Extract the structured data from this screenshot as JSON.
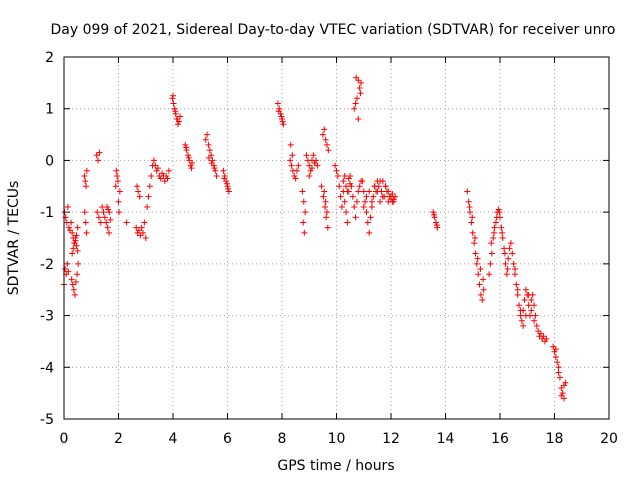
{
  "chart_data": {
    "type": "scatter",
    "title": "Day 099 of 2021, Sidereal Day-to-day VTEC variation (SDTVAR) for receiver unro",
    "xlabel": "GPS time / hours",
    "ylabel": "SDTVAR / TECUs",
    "xlim": [
      0,
      20
    ],
    "ylim": [
      -5,
      2
    ],
    "xticks": [
      "0",
      "2",
      "4",
      "6",
      "8",
      "10",
      "12",
      "14",
      "16",
      "18",
      "20"
    ],
    "yticks": [
      "2",
      "1",
      "0",
      "-1",
      "-2",
      "-3",
      "-4",
      "-5"
    ],
    "grid": true,
    "marker": "+",
    "color": "#ff0000",
    "series": [
      {
        "name": "SDTVAR",
        "x": [
          0.0,
          0.04,
          0.08,
          0.12,
          0.16,
          0.02,
          0.06,
          0.1,
          0.14,
          0.18,
          0.22,
          0.26,
          0.3,
          0.34,
          0.38,
          0.42,
          0.46,
          0.5,
          0.28,
          0.32,
          0.36,
          0.4,
          0.44,
          0.48,
          0.52,
          0.3,
          0.34,
          0.38,
          0.42,
          0.46,
          0.5,
          0.75,
          0.78,
          0.81,
          0.84,
          0.76,
          0.8,
          0.83,
          1.2,
          1.25,
          1.3,
          1.22,
          1.28,
          1.35,
          1.4,
          1.45,
          1.5,
          1.55,
          1.6,
          1.65,
          1.7,
          1.58,
          1.62,
          1.66,
          1.9,
          1.95,
          2.0,
          2.05,
          1.92,
          1.98,
          2.02,
          2.3,
          2.65,
          2.7,
          2.75,
          2.8,
          2.68,
          2.72,
          2.78,
          2.85,
          2.9,
          2.95,
          3.0,
          3.05,
          3.1,
          3.15,
          3.2,
          3.25,
          3.3,
          3.35,
          3.4,
          3.45,
          3.5,
          3.55,
          3.6,
          3.65,
          3.7,
          3.75,
          3.8,
          3.85,
          3.98,
          4.02,
          4.06,
          4.1,
          4.14,
          4.18,
          4.22,
          4.26,
          4.0,
          4.08,
          4.16,
          4.45,
          4.5,
          4.55,
          4.6,
          4.65,
          4.7,
          4.48,
          4.58,
          4.68,
          5.2,
          5.25,
          5.3,
          5.35,
          5.4,
          5.45,
          5.5,
          5.55,
          5.6,
          5.32,
          5.42,
          5.52,
          5.85,
          5.9,
          5.95,
          6.0,
          6.05,
          5.88,
          5.98,
          6.02,
          7.85,
          7.9,
          7.95,
          8.0,
          8.05,
          7.88,
          7.98,
          8.02,
          8.3,
          8.35,
          8.4,
          8.45,
          8.32,
          8.38,
          8.5,
          8.55,
          8.6,
          8.75,
          8.8,
          8.85,
          8.78,
          8.82,
          8.9,
          8.95,
          9.0,
          9.05,
          9.1,
          9.15,
          9.2,
          9.25,
          9.3,
          9.0,
          9.1,
          9.2,
          9.5,
          9.55,
          9.6,
          9.65,
          9.7,
          9.45,
          9.52,
          9.58,
          9.62,
          9.68,
          9.55,
          9.6,
          9.65,
          9.95,
          10.0,
          10.05,
          10.1,
          10.15,
          10.2,
          10.25,
          10.3,
          10.35,
          10.4,
          10.45,
          10.5,
          10.55,
          10.6,
          10.65,
          10.7,
          10.75,
          10.8,
          10.85,
          10.9,
          11.0,
          11.1,
          11.2,
          11.3,
          11.4,
          11.5,
          11.6,
          11.7,
          11.8,
          11.9,
          12.0,
          12.05,
          12.1,
          10.25,
          10.3,
          10.35,
          10.4,
          10.45,
          10.5,
          10.65,
          10.7,
          10.75,
          10.8,
          10.85,
          10.9,
          10.72,
          10.8,
          10.88,
          10.95,
          11.0,
          11.05,
          11.1,
          11.15,
          11.2,
          11.25,
          11.3,
          11.35,
          11.4,
          11.45,
          11.5,
          11.55,
          11.6,
          11.65,
          11.7,
          11.75,
          11.8,
          11.85,
          11.9,
          11.95,
          12.0,
          12.05,
          12.1,
          12.15,
          13.55,
          13.6,
          13.65,
          13.7,
          13.58,
          13.68,
          14.8,
          14.85,
          14.9,
          14.95,
          15.0,
          15.05,
          15.1,
          15.15,
          15.2,
          15.25,
          15.3,
          15.35,
          15.4,
          14.88,
          14.98,
          15.08,
          15.18,
          15.28,
          15.38,
          15.6,
          15.65,
          15.7,
          15.75,
          15.8,
          15.85,
          15.9,
          15.95,
          16.0,
          16.05,
          16.1,
          16.15,
          16.2,
          16.25,
          16.3,
          16.35,
          15.68,
          15.78,
          15.88,
          15.98,
          16.08,
          16.18,
          16.28,
          16.4,
          16.45,
          16.5,
          16.55,
          16.6,
          16.65,
          16.7,
          16.75,
          16.8,
          16.85,
          16.9,
          16.95,
          17.0,
          17.05,
          17.1,
          17.15,
          17.2,
          17.25,
          17.3,
          16.55,
          16.65,
          16.75,
          16.85,
          16.95,
          17.05,
          17.15,
          17.25,
          17.35,
          17.4,
          17.45,
          17.5,
          17.55,
          17.6,
          17.65,
          17.7,
          17.95,
          18.0,
          18.05,
          18.1,
          18.15,
          18.2,
          18.25,
          18.3,
          18.35,
          18.4,
          18.05,
          18.15,
          18.25,
          18.35
        ],
        "y": [
          -2.4,
          -2.1,
          -2.2,
          -2.0,
          -2.15,
          -1.0,
          -1.1,
          -1.2,
          -0.9,
          -1.3,
          -1.35,
          -1.2,
          -1.4,
          -1.5,
          -1.6,
          -1.55,
          -1.45,
          -1.3,
          -2.3,
          -2.4,
          -2.5,
          -2.6,
          -2.35,
          -2.2,
          -2.0,
          -1.8,
          -1.7,
          -1.6,
          -1.5,
          -1.65,
          -1.75,
          -0.3,
          -0.4,
          -0.5,
          -0.2,
          -1.0,
          -1.2,
          -1.4,
          0.1,
          0.0,
          0.15,
          -1.0,
          -1.1,
          -1.2,
          -0.9,
          -1.0,
          -1.1,
          -1.2,
          -1.3,
          -1.4,
          -1.15,
          -0.9,
          -0.95,
          -1.0,
          -0.5,
          -0.3,
          -0.8,
          -0.6,
          -0.2,
          -0.4,
          -1.0,
          -1.2,
          -1.3,
          -1.4,
          -1.35,
          -1.45,
          -0.5,
          -0.6,
          -0.7,
          -1.3,
          -1.4,
          -1.2,
          -1.5,
          -0.9,
          -0.7,
          -0.5,
          -0.3,
          -0.1,
          0.0,
          -0.1,
          -0.2,
          -0.15,
          -0.3,
          -0.35,
          -0.25,
          -0.3,
          -0.4,
          -0.3,
          -0.35,
          -0.2,
          1.2,
          1.1,
          1.0,
          0.9,
          0.8,
          0.7,
          0.75,
          0.85,
          1.25,
          0.95,
          0.8,
          0.3,
          0.2,
          0.1,
          0.0,
          -0.1,
          -0.05,
          0.25,
          0.05,
          -0.15,
          0.4,
          0.5,
          0.3,
          0.2,
          0.1,
          0.0,
          -0.1,
          -0.2,
          -0.3,
          0.05,
          -0.05,
          -0.15,
          -0.2,
          -0.3,
          -0.4,
          -0.5,
          -0.6,
          -0.35,
          -0.45,
          -0.55,
          1.1,
          1.0,
          0.9,
          0.8,
          0.7,
          0.95,
          0.85,
          0.75,
          0.0,
          -0.1,
          -0.2,
          -0.3,
          0.3,
          0.1,
          -0.35,
          -0.2,
          -0.1,
          -0.6,
          -0.8,
          -1.0,
          -1.2,
          -1.4,
          0.1,
          0.0,
          -0.1,
          -0.2,
          0.0,
          0.1,
          -0.05,
          0.0,
          -0.1,
          -0.3,
          -0.15,
          -0.05,
          0.5,
          0.6,
          0.4,
          0.3,
          0.2,
          -0.5,
          -0.7,
          -0.9,
          -1.1,
          -1.3,
          -0.6,
          -0.8,
          -1.0,
          -0.1,
          -0.2,
          -0.3,
          -0.5,
          -0.7,
          -0.9,
          -0.6,
          -0.8,
          -1.0,
          -1.2,
          -0.6,
          -0.3,
          -0.5,
          -0.7,
          -0.9,
          -1.1,
          -0.8,
          -0.6,
          -0.5,
          -0.4,
          -0.9,
          -0.7,
          -0.6,
          -0.8,
          -0.5,
          -0.6,
          -0.4,
          -0.7,
          -0.5,
          -0.6,
          -0.7,
          -0.8,
          -0.75,
          -0.4,
          -0.3,
          -0.5,
          -0.6,
          -0.35,
          -0.45,
          1.0,
          1.1,
          1.2,
          0.8,
          1.4,
          1.5,
          1.6,
          1.55,
          1.3,
          -0.4,
          -0.6,
          -0.8,
          -1.0,
          -1.2,
          -1.4,
          -1.1,
          -0.9,
          -0.7,
          -0.5,
          -0.6,
          -0.4,
          -0.5,
          -0.8,
          -0.6,
          -0.4,
          -0.7,
          -0.5,
          -0.6,
          -0.8,
          -0.7,
          -0.75,
          -0.65,
          -0.8,
          -0.7,
          -1.0,
          -1.1,
          -1.2,
          -1.3,
          -1.05,
          -1.25,
          -0.6,
          -0.8,
          -1.0,
          -1.2,
          -1.4,
          -1.6,
          -1.8,
          -2.0,
          -2.2,
          -2.4,
          -2.6,
          -2.7,
          -2.5,
          -0.9,
          -1.1,
          -1.5,
          -1.9,
          -2.1,
          -2.3,
          -2.2,
          -2.0,
          -1.8,
          -1.5,
          -1.3,
          -1.2,
          -1.0,
          -0.95,
          -1.1,
          -1.3,
          -1.5,
          -1.7,
          -2.0,
          -2.2,
          -1.9,
          -1.7,
          -1.6,
          -1.4,
          -1.1,
          -1.0,
          -1.4,
          -1.8,
          -2.1,
          -1.6,
          -1.8,
          -2.0,
          -2.2,
          -2.4,
          -2.6,
          -2.8,
          -3.0,
          -3.1,
          -2.9,
          -2.7,
          -2.5,
          -2.6,
          -2.8,
          -3.0,
          -2.7,
          -2.6,
          -2.8,
          -3.0,
          -2.1,
          -2.5,
          -2.9,
          -3.2,
          -3.0,
          -2.6,
          -2.9,
          -3.1,
          -3.2,
          -3.3,
          -3.4,
          -3.35,
          -3.45,
          -3.4,
          -3.5,
          -3.45,
          -3.6,
          -3.7,
          -3.8,
          -3.9,
          -4.0,
          -4.2,
          -4.4,
          -4.5,
          -4.6,
          -4.3,
          -3.65,
          -4.1,
          -4.55,
          -4.35
        ]
      }
    ]
  }
}
